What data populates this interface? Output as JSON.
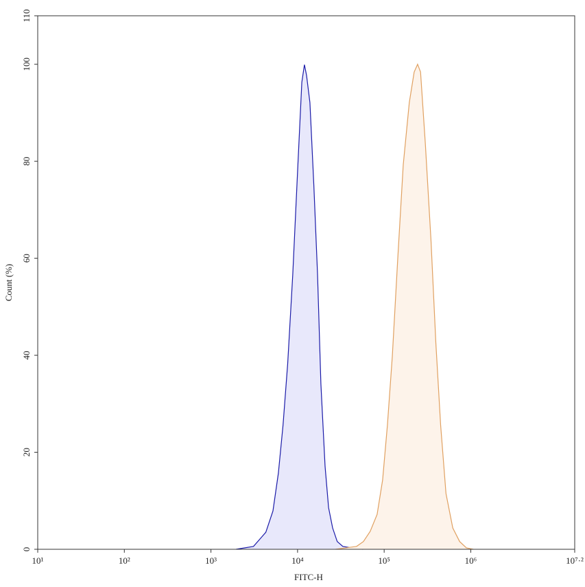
{
  "chart_data": {
    "type": "area",
    "xlabel": "FITC-H",
    "ylabel": "Count (%)",
    "xscale": "log",
    "xlim": [
      10,
      15848932
    ],
    "ylim": [
      0,
      110
    ],
    "xticks": [
      {
        "value": 10,
        "label": "10¹"
      },
      {
        "value": 100,
        "label": "10²"
      },
      {
        "value": 1000,
        "label": "10³"
      },
      {
        "value": 10000,
        "label": "10⁴"
      },
      {
        "value": 100000,
        "label": "10⁵"
      },
      {
        "value": 1000000,
        "label": "10⁶"
      },
      {
        "value": 15848932,
        "label": "10⁷·²"
      }
    ],
    "yticks": [
      0,
      20,
      40,
      60,
      80,
      100,
      110
    ],
    "series": [
      {
        "color": "#1a1aa8",
        "fill": "#e8e8fb",
        "x": [
          1950,
          3100,
          4300,
          5200,
          6000,
          6800,
          7700,
          8800,
          10000,
          11200,
          12000,
          12700,
          13900,
          15400,
          17000,
          18600,
          20800,
          22800,
          25400,
          28700,
          33300,
          48000,
          57000
        ],
        "values": [
          0,
          0.6,
          3.5,
          7.9,
          15.7,
          25.6,
          38.3,
          56.7,
          77.9,
          96.3,
          99.9,
          97.7,
          92.1,
          75.1,
          56.7,
          34.1,
          17.1,
          8.6,
          4.4,
          1.6,
          0.6,
          0.1,
          0
        ]
      },
      {
        "color": "#e0a060",
        "fill": "#fdf3ea",
        "x": [
          27500,
          48000,
          57600,
          69000,
          83000,
          96000,
          109000,
          124000,
          143000,
          166000,
          195000,
          222000,
          243000,
          263000,
          299000,
          347000,
          395000,
          449000,
          517000,
          620000,
          743000,
          890000,
          1070000
        ],
        "values": [
          0,
          0.6,
          1.6,
          3.7,
          7.2,
          14.3,
          25.6,
          39.7,
          59.5,
          79.3,
          92.1,
          98.4,
          100,
          98.4,
          83.6,
          63.8,
          42.6,
          25.6,
          11.5,
          4.4,
          1.6,
          0.3,
          0
        ]
      }
    ]
  }
}
